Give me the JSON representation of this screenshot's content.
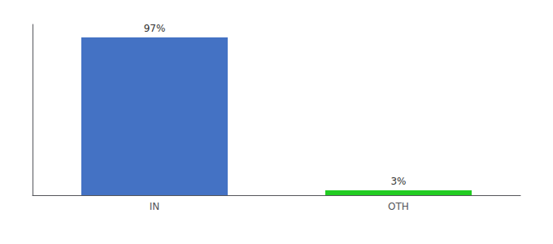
{
  "chart_data": {
    "type": "bar",
    "categories": [
      "IN",
      "OTH"
    ],
    "values": [
      97,
      3
    ],
    "value_labels": [
      "97%",
      "3%"
    ],
    "colors": [
      "#4472c4",
      "#22cc22"
    ],
    "ylim": [
      0,
      105
    ],
    "yticks": [],
    "tick_labels": "x",
    "data_labels": true,
    "grid": false
  }
}
